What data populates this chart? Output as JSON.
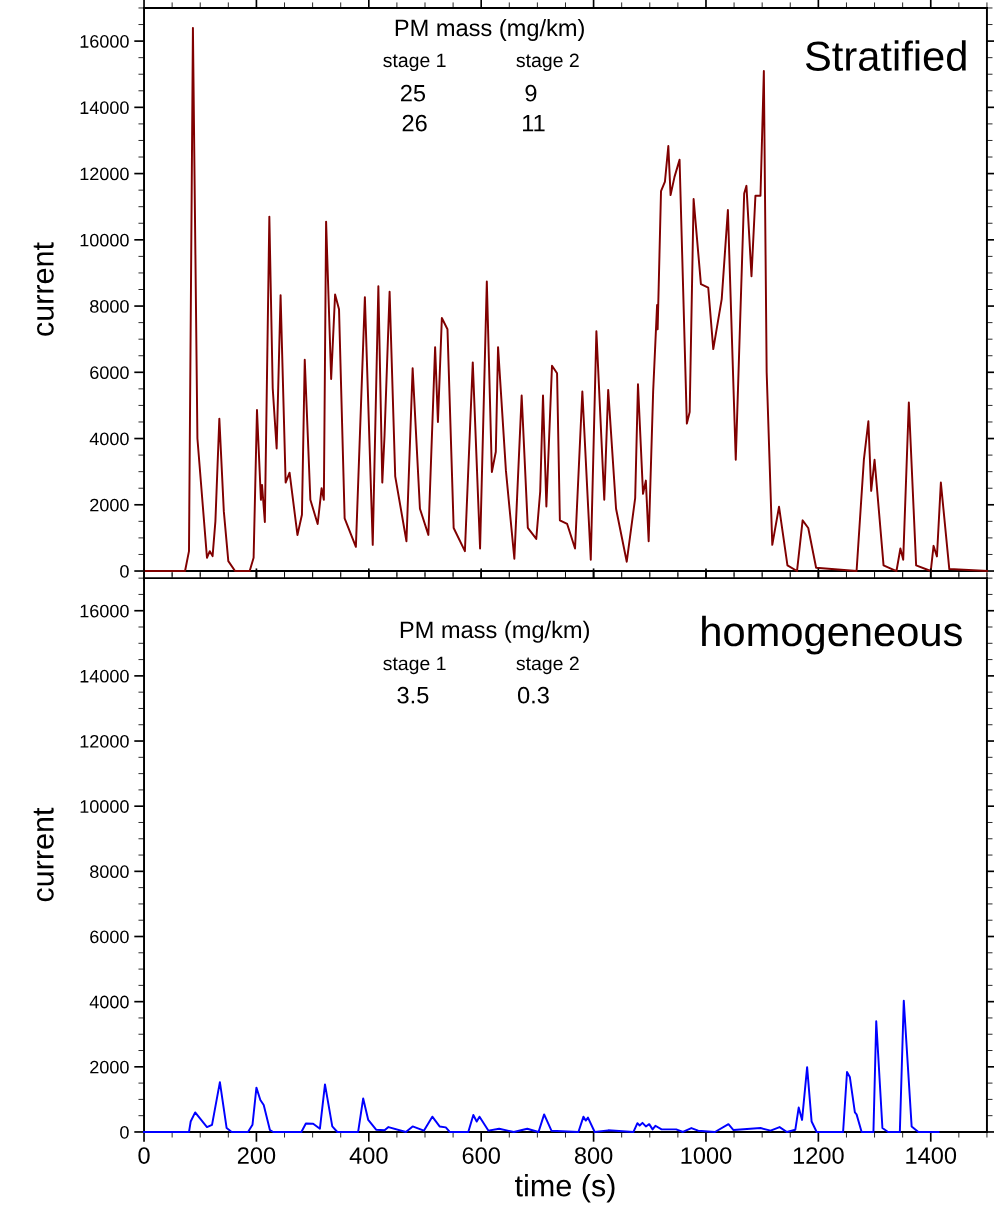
{
  "chart_data": [
    {
      "type": "line",
      "title": "Stratified",
      "ylabel": "current",
      "xlim": [
        0,
        1500
      ],
      "xticks": [
        0,
        200,
        400,
        600,
        800,
        1000,
        1200,
        1400
      ],
      "ylim": [
        0,
        17000
      ],
      "yticks": [
        0,
        2000,
        4000,
        6000,
        8000,
        10000,
        12000,
        14000,
        16000
      ],
      "tick_labels": "y",
      "grid": false,
      "legend": false,
      "annotations": [
        "PM mass (mg/km)",
        "stage 1",
        "stage 2",
        "25",
        "9",
        "26",
        "11"
      ],
      "series": [
        {
          "color": "#800000",
          "x": [
            0,
            73,
            80,
            87,
            95,
            112,
            117,
            122,
            127,
            134,
            142,
            150,
            162,
            188,
            195,
            201,
            208,
            210,
            215,
            223,
            229,
            236,
            243,
            252,
            259,
            273,
            281,
            286,
            296,
            309,
            316,
            320,
            324,
            333,
            340,
            347,
            357,
            377,
            393,
            407,
            417,
            424,
            428,
            437,
            447,
            467,
            478,
            491,
            506,
            518,
            523,
            530,
            540,
            551,
            571,
            585,
            598,
            610,
            619,
            626,
            630,
            644,
            659,
            672,
            683,
            698,
            705,
            710,
            716,
            726,
            735,
            740,
            753,
            767,
            780,
            795,
            805,
            819,
            826,
            840,
            859,
            874,
            879,
            888,
            893,
            898,
            906,
            913,
            914,
            920,
            927,
            933,
            937,
            944,
            953,
            966,
            971,
            978,
            991,
            1004,
            1013,
            1028,
            1039,
            1053,
            1068,
            1072,
            1081,
            1088,
            1097,
            1103,
            1108,
            1118,
            1130,
            1145,
            1162,
            1172,
            1182,
            1196,
            1268,
            1281,
            1289,
            1294,
            1300,
            1316,
            1339,
            1346,
            1351,
            1361,
            1374,
            1400,
            1405,
            1411,
            1418,
            1433,
            1500
          ],
          "values": [
            0,
            0,
            600,
            16400,
            4000,
            400,
            600,
            450,
            1500,
            4600,
            1800,
            300,
            0,
            0,
            400,
            4860,
            2150,
            2600,
            1480,
            10700,
            5520,
            3700,
            8330,
            2670,
            2970,
            1090,
            1700,
            6380,
            2150,
            1420,
            2500,
            2150,
            10550,
            5800,
            8350,
            7900,
            1590,
            730,
            8270,
            790,
            8600,
            2670,
            4100,
            8430,
            2860,
            900,
            6120,
            1880,
            1090,
            6760,
            4500,
            7640,
            7300,
            1300,
            600,
            6300,
            680,
            8740,
            2990,
            3600,
            6760,
            3030,
            370,
            5300,
            1300,
            970,
            2400,
            5300,
            1950,
            6200,
            5970,
            1530,
            1420,
            680,
            5420,
            340,
            7240,
            2150,
            5470,
            1880,
            280,
            2200,
            5640,
            2330,
            2730,
            900,
            5420,
            8030,
            7300,
            11470,
            11760,
            12830,
            11350,
            11900,
            12420,
            4450,
            4800,
            11230,
            8660,
            8560,
            6700,
            8210,
            10900,
            3360,
            11400,
            11630,
            8900,
            11330,
            11330,
            15100,
            6000,
            790,
            1940,
            170,
            0,
            1530,
            1300,
            100,
            0,
            3360,
            4520,
            2420,
            3360,
            170,
            0,
            680,
            340,
            5090,
            170,
            0,
            760,
            440,
            2670,
            60,
            0
          ]
        }
      ]
    },
    {
      "type": "line",
      "title": "homogeneous",
      "ylabel": "current",
      "xlabel": "time (s)",
      "xlim": [
        0,
        1500
      ],
      "xticks": [
        0,
        200,
        400,
        600,
        800,
        1000,
        1200,
        1400
      ],
      "ylim": [
        0,
        17000
      ],
      "yticks": [
        0,
        2000,
        4000,
        6000,
        8000,
        10000,
        12000,
        14000,
        16000
      ],
      "grid": false,
      "legend": false,
      "annotations": [
        "PM mass (mg/km)",
        "stage 1",
        "stage 2",
        "3.5",
        "0.3"
      ],
      "series": [
        {
          "color": "#0000ff",
          "x": [
            0,
            80,
            83,
            91,
            112,
            121,
            135,
            147,
            156,
            185,
            193,
            200,
            207,
            213,
            224,
            230,
            280,
            288,
            301,
            313,
            322,
            335,
            344,
            381,
            390,
            399,
            413,
            428,
            435,
            466,
            478,
            498,
            513,
            526,
            537,
            544,
            577,
            586,
            592,
            597,
            613,
            632,
            658,
            682,
            702,
            712,
            725,
            773,
            782,
            786,
            790,
            802,
            826,
            871,
            878,
            882,
            887,
            893,
            899,
            905,
            910,
            921,
            947,
            959,
            974,
            986,
            1016,
            1040,
            1049,
            1097,
            1115,
            1131,
            1144,
            1159,
            1165,
            1171,
            1180,
            1188,
            1197,
            1244,
            1251,
            1256,
            1265,
            1268,
            1277,
            1298,
            1303,
            1314,
            1324,
            1345,
            1352,
            1366,
            1378,
            1414
          ],
          "values": [
            0,
            0,
            320,
            600,
            150,
            220,
            1530,
            120,
            0,
            0,
            220,
            1360,
            980,
            830,
            60,
            0,
            0,
            260,
            250,
            100,
            1460,
            170,
            0,
            0,
            1030,
            370,
            70,
            50,
            150,
            0,
            170,
            40,
            470,
            170,
            140,
            0,
            0,
            520,
            320,
            470,
            40,
            100,
            0,
            100,
            0,
            540,
            40,
            0,
            470,
            350,
            440,
            0,
            50,
            0,
            270,
            200,
            280,
            170,
            240,
            80,
            190,
            80,
            80,
            0,
            120,
            40,
            0,
            240,
            60,
            120,
            40,
            150,
            0,
            70,
            750,
            370,
            1990,
            320,
            0,
            0,
            1840,
            1690,
            600,
            540,
            0,
            0,
            3400,
            120,
            0,
            0,
            4030,
            170,
            0,
            0
          ]
        }
      ]
    }
  ]
}
